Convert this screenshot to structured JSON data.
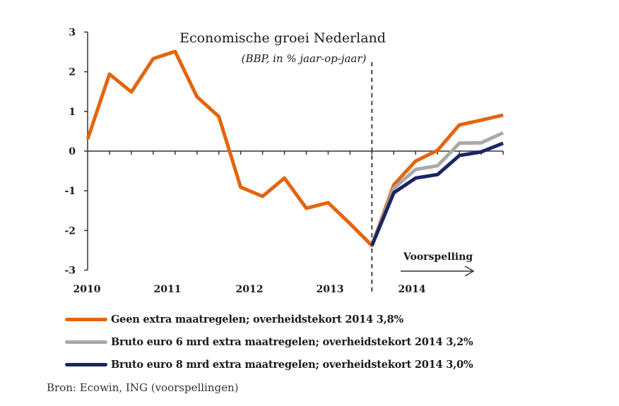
{
  "chart_data": {
    "type": "line",
    "title": "Economische groei Nederland",
    "subtitle": "(BBP, in % jaar-op-jaar)",
    "xlabel": "",
    "ylabel": "",
    "ylim": [
      -3,
      3
    ],
    "yticks": [
      3,
      2,
      1,
      0,
      -1,
      -2,
      -3
    ],
    "x": [
      "2010Q1",
      "2010Q2",
      "2010Q3",
      "2010Q4",
      "2011Q1",
      "2011Q2",
      "2011Q3",
      "2011Q4",
      "2012Q1",
      "2012Q2",
      "2012Q3",
      "2012Q4",
      "2013Q1",
      "2013Q2",
      "2013Q3",
      "2013Q4",
      "2014Q1",
      "2014Q2",
      "2014Q3",
      "2014Q4"
    ],
    "xtick_labels": [
      "2010",
      "2011",
      "2012",
      "2013",
      "2014"
    ],
    "forecast_start": "2013Q2",
    "annotation": "Voorspelling",
    "grid": false,
    "series": [
      {
        "name": "Geen extra maatregelen; overheidstekort 2014 3,8%",
        "color": "#E3650F",
        "values": [
          0.3,
          1.94,
          1.49,
          2.33,
          2.51,
          1.37,
          0.87,
          -0.91,
          -1.14,
          -0.68,
          -1.44,
          -1.3,
          -1.83,
          -2.38,
          -0.85,
          -0.25,
          0.02,
          0.66,
          0.78,
          0.91
        ]
      },
      {
        "name": "Bruto euro 6 mrd extra maatregelen; overheidstekort 2014 3,2%",
        "color": "#A9A9A9",
        "values": [
          null,
          null,
          null,
          null,
          null,
          null,
          null,
          null,
          null,
          null,
          null,
          null,
          null,
          -2.38,
          -0.94,
          -0.46,
          -0.37,
          0.2,
          0.21,
          0.46
        ]
      },
      {
        "name": "Bruto euro 8 mrd extra maatregelen; overheidstekort 2014 3,0%",
        "color": "#1B2566",
        "values": [
          null,
          null,
          null,
          null,
          null,
          null,
          null,
          null,
          null,
          null,
          null,
          null,
          null,
          -2.38,
          -1.05,
          -0.68,
          -0.59,
          -0.11,
          -0.02,
          0.2
        ]
      }
    ],
    "legend_position": "bottom",
    "source": "Bron: Ecowin, ING (voorspellingen)"
  }
}
